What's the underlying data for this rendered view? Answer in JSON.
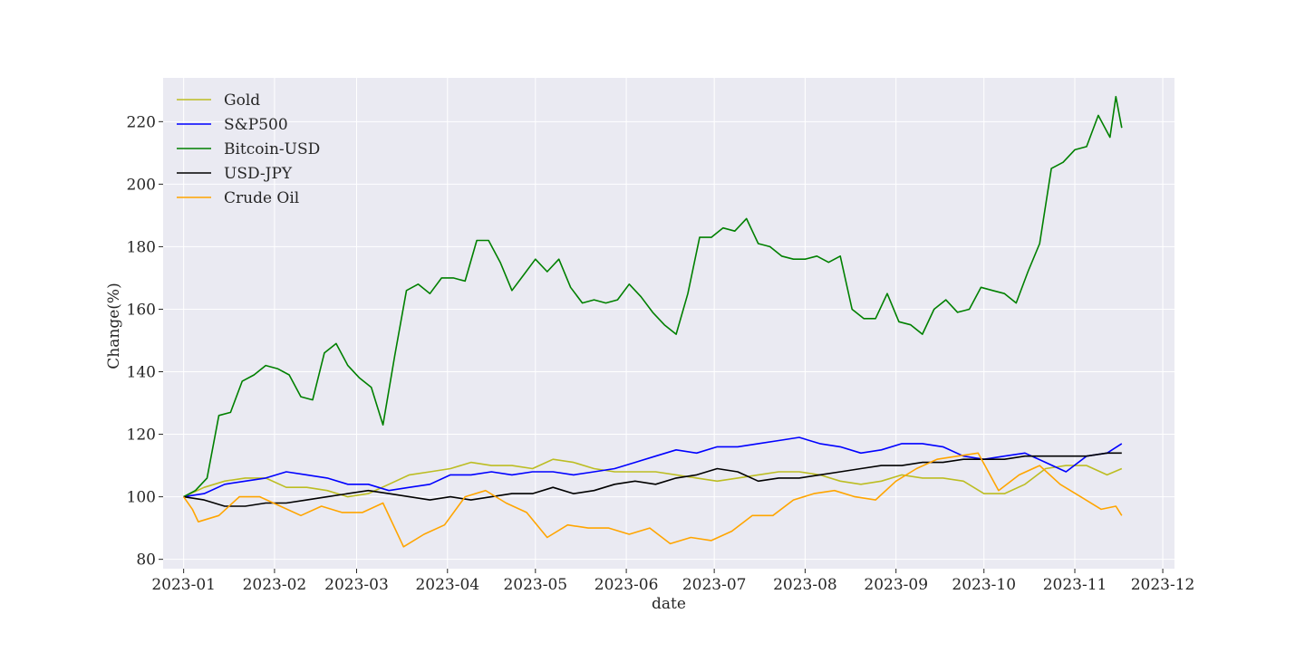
{
  "chart_data": {
    "type": "line",
    "title": "",
    "xlabel": "date",
    "ylabel": "Change(%)",
    "x_ticks": [
      "2023-01",
      "2023-02",
      "2023-03",
      "2023-04",
      "2023-05",
      "2023-06",
      "2023-07",
      "2023-08",
      "2023-09",
      "2023-10",
      "2023-11",
      "2023-12"
    ],
    "y_ticks": [
      80,
      100,
      120,
      140,
      160,
      180,
      200,
      220
    ],
    "xlim": [
      "2022-12-25",
      "2023-12-05"
    ],
    "ylim": [
      77,
      234
    ],
    "grid": true,
    "legend_position": "upper left",
    "background_color": "#eaeaf2",
    "series": [
      {
        "name": "Gold",
        "color": "#bcbd22",
        "points": [
          [
            "2023-01-01",
            100
          ],
          [
            "2023-01-08",
            103
          ],
          [
            "2023-01-15",
            105
          ],
          [
            "2023-01-22",
            106
          ],
          [
            "2023-01-29",
            106
          ],
          [
            "2023-02-05",
            103
          ],
          [
            "2023-02-12",
            103
          ],
          [
            "2023-02-19",
            102
          ],
          [
            "2023-02-26",
            100
          ],
          [
            "2023-03-05",
            101
          ],
          [
            "2023-03-12",
            104
          ],
          [
            "2023-03-19",
            107
          ],
          [
            "2023-03-26",
            108
          ],
          [
            "2023-04-02",
            109
          ],
          [
            "2023-04-09",
            111
          ],
          [
            "2023-04-16",
            110
          ],
          [
            "2023-04-23",
            110
          ],
          [
            "2023-04-30",
            109
          ],
          [
            "2023-05-07",
            112
          ],
          [
            "2023-05-14",
            111
          ],
          [
            "2023-05-21",
            109
          ],
          [
            "2023-05-28",
            108
          ],
          [
            "2023-06-04",
            108
          ],
          [
            "2023-06-11",
            108
          ],
          [
            "2023-06-18",
            107
          ],
          [
            "2023-06-25",
            106
          ],
          [
            "2023-07-02",
            105
          ],
          [
            "2023-07-09",
            106
          ],
          [
            "2023-07-16",
            107
          ],
          [
            "2023-07-23",
            108
          ],
          [
            "2023-07-30",
            108
          ],
          [
            "2023-08-06",
            107
          ],
          [
            "2023-08-13",
            105
          ],
          [
            "2023-08-20",
            104
          ],
          [
            "2023-08-27",
            105
          ],
          [
            "2023-09-03",
            107
          ],
          [
            "2023-09-10",
            106
          ],
          [
            "2023-09-17",
            106
          ],
          [
            "2023-09-24",
            105
          ],
          [
            "2023-10-01",
            101
          ],
          [
            "2023-10-08",
            101
          ],
          [
            "2023-10-15",
            104
          ],
          [
            "2023-10-22",
            109
          ],
          [
            "2023-10-29",
            110
          ],
          [
            "2023-11-05",
            110
          ],
          [
            "2023-11-12",
            107
          ],
          [
            "2023-11-17",
            109
          ]
        ]
      },
      {
        "name": "S&P500",
        "color": "#0000ff",
        "points": [
          [
            "2023-01-01",
            100
          ],
          [
            "2023-01-08",
            101
          ],
          [
            "2023-01-15",
            104
          ],
          [
            "2023-01-22",
            105
          ],
          [
            "2023-01-29",
            106
          ],
          [
            "2023-02-05",
            108
          ],
          [
            "2023-02-12",
            107
          ],
          [
            "2023-02-19",
            106
          ],
          [
            "2023-02-26",
            104
          ],
          [
            "2023-03-05",
            104
          ],
          [
            "2023-03-12",
            102
          ],
          [
            "2023-03-19",
            103
          ],
          [
            "2023-03-26",
            104
          ],
          [
            "2023-04-02",
            107
          ],
          [
            "2023-04-09",
            107
          ],
          [
            "2023-04-16",
            108
          ],
          [
            "2023-04-23",
            107
          ],
          [
            "2023-04-30",
            108
          ],
          [
            "2023-05-07",
            108
          ],
          [
            "2023-05-14",
            107
          ],
          [
            "2023-05-21",
            108
          ],
          [
            "2023-05-28",
            109
          ],
          [
            "2023-06-04",
            111
          ],
          [
            "2023-06-11",
            113
          ],
          [
            "2023-06-18",
            115
          ],
          [
            "2023-06-25",
            114
          ],
          [
            "2023-07-02",
            116
          ],
          [
            "2023-07-09",
            116
          ],
          [
            "2023-07-16",
            117
          ],
          [
            "2023-07-23",
            118
          ],
          [
            "2023-07-30",
            119
          ],
          [
            "2023-08-06",
            117
          ],
          [
            "2023-08-13",
            116
          ],
          [
            "2023-08-20",
            114
          ],
          [
            "2023-08-27",
            115
          ],
          [
            "2023-09-03",
            117
          ],
          [
            "2023-09-10",
            117
          ],
          [
            "2023-09-17",
            116
          ],
          [
            "2023-09-24",
            113
          ],
          [
            "2023-10-01",
            112
          ],
          [
            "2023-10-08",
            113
          ],
          [
            "2023-10-15",
            114
          ],
          [
            "2023-10-22",
            111
          ],
          [
            "2023-10-29",
            108
          ],
          [
            "2023-11-05",
            113
          ],
          [
            "2023-11-12",
            114
          ],
          [
            "2023-11-17",
            117
          ]
        ]
      },
      {
        "name": "Bitcoin-USD",
        "color": "#008000",
        "points": [
          [
            "2023-01-01",
            100
          ],
          [
            "2023-01-05",
            102
          ],
          [
            "2023-01-09",
            106
          ],
          [
            "2023-01-13",
            126
          ],
          [
            "2023-01-17",
            127
          ],
          [
            "2023-01-21",
            137
          ],
          [
            "2023-01-25",
            139
          ],
          [
            "2023-01-29",
            142
          ],
          [
            "2023-02-02",
            141
          ],
          [
            "2023-02-06",
            139
          ],
          [
            "2023-02-10",
            132
          ],
          [
            "2023-02-14",
            131
          ],
          [
            "2023-02-18",
            146
          ],
          [
            "2023-02-22",
            149
          ],
          [
            "2023-02-26",
            142
          ],
          [
            "2023-03-02",
            138
          ],
          [
            "2023-03-06",
            135
          ],
          [
            "2023-03-10",
            123
          ],
          [
            "2023-03-14",
            145
          ],
          [
            "2023-03-18",
            166
          ],
          [
            "2023-03-22",
            168
          ],
          [
            "2023-03-26",
            165
          ],
          [
            "2023-03-30",
            170
          ],
          [
            "2023-04-03",
            170
          ],
          [
            "2023-04-07",
            169
          ],
          [
            "2023-04-11",
            182
          ],
          [
            "2023-04-15",
            182
          ],
          [
            "2023-04-19",
            175
          ],
          [
            "2023-04-23",
            166
          ],
          [
            "2023-04-27",
            171
          ],
          [
            "2023-05-01",
            176
          ],
          [
            "2023-05-05",
            172
          ],
          [
            "2023-05-09",
            176
          ],
          [
            "2023-05-13",
            167
          ],
          [
            "2023-05-17",
            162
          ],
          [
            "2023-05-21",
            163
          ],
          [
            "2023-05-25",
            162
          ],
          [
            "2023-05-29",
            163
          ],
          [
            "2023-06-02",
            168
          ],
          [
            "2023-06-06",
            164
          ],
          [
            "2023-06-10",
            159
          ],
          [
            "2023-06-14",
            155
          ],
          [
            "2023-06-18",
            152
          ],
          [
            "2023-06-22",
            165
          ],
          [
            "2023-06-26",
            183
          ],
          [
            "2023-06-30",
            183
          ],
          [
            "2023-07-04",
            186
          ],
          [
            "2023-07-08",
            185
          ],
          [
            "2023-07-12",
            189
          ],
          [
            "2023-07-16",
            181
          ],
          [
            "2023-07-20",
            180
          ],
          [
            "2023-07-24",
            177
          ],
          [
            "2023-07-28",
            176
          ],
          [
            "2023-08-01",
            176
          ],
          [
            "2023-08-05",
            177
          ],
          [
            "2023-08-09",
            175
          ],
          [
            "2023-08-13",
            177
          ],
          [
            "2023-08-17",
            160
          ],
          [
            "2023-08-21",
            157
          ],
          [
            "2023-08-25",
            157
          ],
          [
            "2023-08-29",
            165
          ],
          [
            "2023-09-02",
            156
          ],
          [
            "2023-09-06",
            155
          ],
          [
            "2023-09-10",
            152
          ],
          [
            "2023-09-14",
            160
          ],
          [
            "2023-09-18",
            163
          ],
          [
            "2023-09-22",
            159
          ],
          [
            "2023-09-26",
            160
          ],
          [
            "2023-09-30",
            167
          ],
          [
            "2023-10-04",
            166
          ],
          [
            "2023-10-08",
            165
          ],
          [
            "2023-10-12",
            162
          ],
          [
            "2023-10-16",
            172
          ],
          [
            "2023-10-20",
            181
          ],
          [
            "2023-10-24",
            205
          ],
          [
            "2023-10-28",
            207
          ],
          [
            "2023-11-01",
            211
          ],
          [
            "2023-11-05",
            212
          ],
          [
            "2023-11-09",
            222
          ],
          [
            "2023-11-13",
            215
          ],
          [
            "2023-11-15",
            228
          ],
          [
            "2023-11-17",
            218
          ]
        ]
      },
      {
        "name": "USD-JPY",
        "color": "#000000",
        "points": [
          [
            "2023-01-01",
            100
          ],
          [
            "2023-01-08",
            99
          ],
          [
            "2023-01-15",
            97
          ],
          [
            "2023-01-22",
            97
          ],
          [
            "2023-01-29",
            98
          ],
          [
            "2023-02-05",
            98
          ],
          [
            "2023-02-12",
            99
          ],
          [
            "2023-02-19",
            100
          ],
          [
            "2023-02-26",
            101
          ],
          [
            "2023-03-05",
            102
          ],
          [
            "2023-03-12",
            101
          ],
          [
            "2023-03-19",
            100
          ],
          [
            "2023-03-26",
            99
          ],
          [
            "2023-04-02",
            100
          ],
          [
            "2023-04-09",
            99
          ],
          [
            "2023-04-16",
            100
          ],
          [
            "2023-04-23",
            101
          ],
          [
            "2023-04-30",
            101
          ],
          [
            "2023-05-07",
            103
          ],
          [
            "2023-05-14",
            101
          ],
          [
            "2023-05-21",
            102
          ],
          [
            "2023-05-28",
            104
          ],
          [
            "2023-06-04",
            105
          ],
          [
            "2023-06-11",
            104
          ],
          [
            "2023-06-18",
            106
          ],
          [
            "2023-06-25",
            107
          ],
          [
            "2023-07-02",
            109
          ],
          [
            "2023-07-09",
            108
          ],
          [
            "2023-07-16",
            105
          ],
          [
            "2023-07-23",
            106
          ],
          [
            "2023-07-30",
            106
          ],
          [
            "2023-08-06",
            107
          ],
          [
            "2023-08-13",
            108
          ],
          [
            "2023-08-20",
            109
          ],
          [
            "2023-08-27",
            110
          ],
          [
            "2023-09-03",
            110
          ],
          [
            "2023-09-10",
            111
          ],
          [
            "2023-09-17",
            111
          ],
          [
            "2023-09-24",
            112
          ],
          [
            "2023-10-01",
            112
          ],
          [
            "2023-10-08",
            112
          ],
          [
            "2023-10-15",
            113
          ],
          [
            "2023-10-22",
            113
          ],
          [
            "2023-10-29",
            113
          ],
          [
            "2023-11-05",
            113
          ],
          [
            "2023-11-12",
            114
          ],
          [
            "2023-11-17",
            114
          ]
        ]
      },
      {
        "name": "Crude Oil",
        "color": "#ffa500",
        "points": [
          [
            "2023-01-01",
            100
          ],
          [
            "2023-01-04",
            96
          ],
          [
            "2023-01-06",
            92
          ],
          [
            "2023-01-13",
            94
          ],
          [
            "2023-01-20",
            100
          ],
          [
            "2023-01-27",
            100
          ],
          [
            "2023-02-03",
            97
          ],
          [
            "2023-02-10",
            94
          ],
          [
            "2023-02-17",
            97
          ],
          [
            "2023-02-24",
            95
          ],
          [
            "2023-03-03",
            95
          ],
          [
            "2023-03-10",
            98
          ],
          [
            "2023-03-17",
            84
          ],
          [
            "2023-03-24",
            88
          ],
          [
            "2023-03-31",
            91
          ],
          [
            "2023-04-07",
            100
          ],
          [
            "2023-04-14",
            102
          ],
          [
            "2023-04-21",
            98
          ],
          [
            "2023-04-28",
            95
          ],
          [
            "2023-05-05",
            87
          ],
          [
            "2023-05-12",
            91
          ],
          [
            "2023-05-19",
            90
          ],
          [
            "2023-05-26",
            90
          ],
          [
            "2023-06-02",
            88
          ],
          [
            "2023-06-09",
            90
          ],
          [
            "2023-06-16",
            85
          ],
          [
            "2023-06-23",
            87
          ],
          [
            "2023-06-30",
            86
          ],
          [
            "2023-07-07",
            89
          ],
          [
            "2023-07-14",
            94
          ],
          [
            "2023-07-21",
            94
          ],
          [
            "2023-07-28",
            99
          ],
          [
            "2023-08-04",
            101
          ],
          [
            "2023-08-11",
            102
          ],
          [
            "2023-08-18",
            100
          ],
          [
            "2023-08-25",
            99
          ],
          [
            "2023-09-01",
            105
          ],
          [
            "2023-09-08",
            109
          ],
          [
            "2023-09-15",
            112
          ],
          [
            "2023-09-22",
            113
          ],
          [
            "2023-09-29",
            114
          ],
          [
            "2023-10-06",
            102
          ],
          [
            "2023-10-13",
            107
          ],
          [
            "2023-10-20",
            110
          ],
          [
            "2023-10-27",
            104
          ],
          [
            "2023-11-03",
            100
          ],
          [
            "2023-11-10",
            96
          ],
          [
            "2023-11-15",
            97
          ],
          [
            "2023-11-17",
            94
          ]
        ]
      }
    ]
  }
}
